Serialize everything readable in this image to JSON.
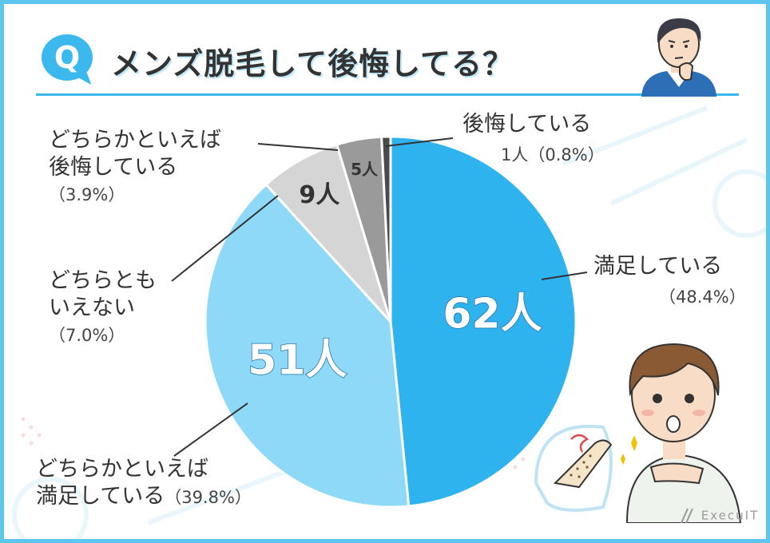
{
  "header": {
    "badge": "Q",
    "title": "メンズ脱毛して後悔してる？"
  },
  "logo": "ExecuIT",
  "chart_data": {
    "type": "pie",
    "title": "メンズ脱毛して後悔してる？",
    "slices": [
      {
        "name": "満足している",
        "count": 62,
        "count_label": "62人",
        "percent": 48.4,
        "percent_label": "（48.4%）",
        "color": "#2fb3ee"
      },
      {
        "name": "どちらかといえば満足している",
        "count": 51,
        "count_label": "51人",
        "percent": 39.8,
        "percent_label": "（39.8%）",
        "color": "#8ed9f7"
      },
      {
        "name": "どちらともいえない",
        "count": 9,
        "count_label": "9人",
        "percent": 7.0,
        "percent_label": "（7.0%）",
        "color": "#d5d5d5"
      },
      {
        "name": "どちらかといえば後悔している",
        "count": 5,
        "count_label": "5人",
        "percent": 3.9,
        "percent_label": "（3.9%）",
        "color": "#9a9a9a"
      },
      {
        "name": "後悔している",
        "count": 1,
        "count_label": "1人",
        "percent": 0.8,
        "percent_label": "（0.8%）",
        "color": "#4a4a4a"
      }
    ]
  },
  "labels": {
    "satisfied": {
      "line1": "満足している",
      "pct": "（48.4%）"
    },
    "somewhat_satisfied": {
      "line1": "どちらかといえば",
      "line2": "満足している",
      "pct": "（39.8%）"
    },
    "neutral": {
      "line1": "どちらとも",
      "line2": "いえない",
      "pct": "（7.0%）"
    },
    "somewhat_regret": {
      "line1": "どちらかといえば",
      "line2": "後悔している",
      "pct": "（3.9%）"
    },
    "regret": {
      "line1": "後悔している",
      "line2": "1人（0.8%）"
    }
  }
}
